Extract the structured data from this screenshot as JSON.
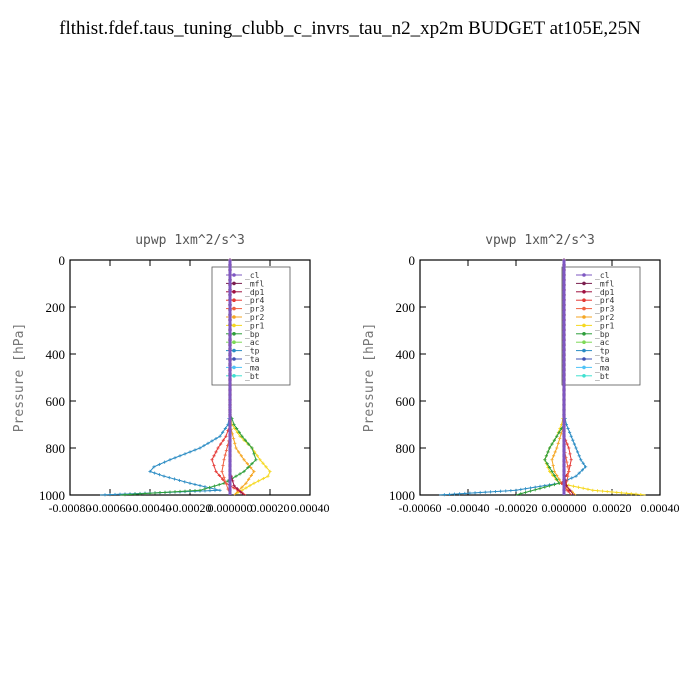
{
  "title": "flthist.fdef.taus_tuning_clubb_c_invrs_tau_n2_xp2m  BUDGET at105E,25N",
  "colors": {
    "_cl": "#7e57c2",
    "_mfl": "#7b1f4f",
    "_dp1": "#a01040",
    "_pr4": "#e53935",
    "_pr3": "#f06040",
    "_pr2": "#f5a623",
    "_pr1": "#f5d820",
    "_bp": "#2e9e3a",
    "_ac": "#7ed957",
    "_tp": "#2b8cc4",
    "_ta": "#3f51b5",
    "_ma": "#4fc3f7",
    "_bt": "#40e0d0"
  },
  "chart_data": [
    {
      "type": "line",
      "title": "upwp   1xm^2/s^3",
      "ylabel": "Pressure [hPa]",
      "xlim": [
        -0.0008,
        0.0004
      ],
      "ylim": [
        1000,
        0
      ],
      "xticks": [
        "-0.00080",
        "-0.00060",
        "-0.00040",
        "-0.00020",
        "0.000000",
        "0.00020",
        "0.00040"
      ],
      "xtick_values": [
        -0.0008,
        -0.0006,
        -0.0004,
        -0.0002,
        0,
        0.0002,
        0.0004
      ],
      "yticks": [
        "0",
        "200",
        "400",
        "600",
        "800",
        "1000"
      ],
      "ytick_values": [
        0,
        200,
        400,
        600,
        800,
        1000
      ],
      "legend": [
        "_cl",
        "_mfl",
        "_dp1",
        "_pr4",
        "_pr3",
        "_pr2",
        "_pr1",
        "_bp",
        "_ac",
        "_tp",
        "_ta",
        "_ma",
        "_bt"
      ],
      "series": [
        {
          "name": "_tp",
          "p": [
            0,
            650,
            700,
            750,
            800,
            850,
            880,
            900,
            920,
            950,
            980,
            1000
          ],
          "x": [
            0,
            0,
            -1e-05,
            -5e-05,
            -0.00015,
            -0.0003,
            -0.00038,
            -0.0004,
            -0.00033,
            -0.0002,
            -5e-05,
            -0.00065
          ]
        },
        {
          "name": "_pr1",
          "p": [
            0,
            650,
            700,
            750,
            800,
            850,
            880,
            900,
            920,
            950,
            980,
            1000
          ],
          "x": [
            0,
            0,
            1e-05,
            5e-05,
            0.00011,
            0.00015,
            0.00018,
            0.0002,
            0.00019,
            0.00012,
            6e-05,
            2e-05
          ]
        },
        {
          "name": "_pr2",
          "p": [
            0,
            700,
            800,
            850,
            900,
            950,
            1000
          ],
          "x": [
            0,
            0,
            3e-05,
            7e-05,
            0.00012,
            8e-05,
            2e-05
          ]
        },
        {
          "name": "_bp",
          "p": [
            0,
            650,
            700,
            750,
            800,
            850,
            900,
            950,
            980,
            1000
          ],
          "x": [
            0,
            0,
            2e-05,
            6e-05,
            0.00011,
            0.00013,
            7e-05,
            -3e-05,
            -0.00015,
            -0.00055
          ]
        },
        {
          "name": "_pr4",
          "p": [
            0,
            700,
            750,
            800,
            850,
            900,
            950,
            1000
          ],
          "x": [
            0,
            0,
            -2e-05,
            -6e-05,
            -9e-05,
            -7e-05,
            -2e-05,
            8e-05
          ]
        },
        {
          "name": "_pr3",
          "p": [
            0,
            750,
            850,
            900,
            950,
            1000
          ],
          "x": [
            0,
            0,
            -3e-05,
            -4e-05,
            -2e-05,
            0
          ]
        },
        {
          "name": "_dp1",
          "p": [
            0,
            900,
            960,
            1000
          ],
          "x": [
            0,
            0,
            2e-05,
            7e-05
          ]
        },
        {
          "name": "_mfl",
          "p": [
            0,
            1000
          ],
          "x": [
            0,
            0
          ]
        },
        {
          "name": "_cl",
          "p": [
            0,
            1000
          ],
          "x": [
            0,
            0
          ]
        }
      ]
    },
    {
      "type": "line",
      "title": "vpwp   1xm^2/s^3",
      "ylabel": "Pressure [hPa]",
      "xlim": [
        -0.0006,
        0.0004
      ],
      "ylim": [
        1000,
        0
      ],
      "xticks": [
        "-0.00060",
        "-0.00040",
        "-0.00020",
        "0.000000",
        "0.00020",
        "0.00040"
      ],
      "xtick_values": [
        -0.0006,
        -0.0004,
        -0.0002,
        0,
        0.0002,
        0.0004
      ],
      "yticks": [
        "0",
        "200",
        "400",
        "600",
        "800",
        "1000"
      ],
      "ytick_values": [
        0,
        200,
        400,
        600,
        800,
        1000
      ],
      "legend": [
        "_cl",
        "_mfl",
        "_dp1",
        "_pr4",
        "_pr3",
        "_pr2",
        "_pr1",
        "_bp",
        "_ac",
        "_tp",
        "_ta",
        "_ma",
        "_bt"
      ],
      "series": [
        {
          "name": "_tp",
          "p": [
            0,
            650,
            700,
            750,
            800,
            850,
            880,
            920,
            950,
            980,
            1000
          ],
          "x": [
            0,
            0,
            1e-05,
            3e-05,
            5e-05,
            7e-05,
            9e-05,
            5e-05,
            -2e-05,
            -0.0002,
            -0.00052
          ]
        },
        {
          "name": "_pr1",
          "p": [
            0,
            650,
            700,
            750,
            800,
            850,
            900,
            950,
            980,
            1000
          ],
          "x": [
            0,
            0,
            -1e-05,
            -3e-05,
            -6e-05,
            -8e-05,
            -6e-05,
            -2e-05,
            0.00012,
            0.00034
          ]
        },
        {
          "name": "_pr2",
          "p": [
            0,
            700,
            800,
            850,
            900,
            950,
            1000
          ],
          "x": [
            0,
            0,
            -3e-05,
            -5e-05,
            -4e-05,
            -1e-05,
            5e-05
          ]
        },
        {
          "name": "_bp",
          "p": [
            0,
            700,
            750,
            800,
            850,
            900,
            950,
            1000
          ],
          "x": [
            0,
            0,
            -3e-05,
            -6e-05,
            -8e-05,
            -5e-05,
            -2e-05,
            -0.0002
          ]
        },
        {
          "name": "_pr4",
          "p": [
            0,
            750,
            800,
            850,
            900,
            950,
            1000
          ],
          "x": [
            0,
            0,
            2e-05,
            3e-05,
            2e-05,
            -1e-05,
            3e-05
          ]
        },
        {
          "name": "_pr3",
          "p": [
            0,
            800,
            900,
            1000
          ],
          "x": [
            0,
            0,
            2e-05,
            0
          ]
        },
        {
          "name": "_dp1",
          "p": [
            0,
            900,
            960,
            1000
          ],
          "x": [
            0,
            0,
            1e-05,
            4e-05
          ]
        },
        {
          "name": "_mfl",
          "p": [
            0,
            1000
          ],
          "x": [
            0,
            0
          ]
        },
        {
          "name": "_cl",
          "p": [
            0,
            1000
          ],
          "x": [
            0,
            0
          ]
        }
      ]
    }
  ]
}
